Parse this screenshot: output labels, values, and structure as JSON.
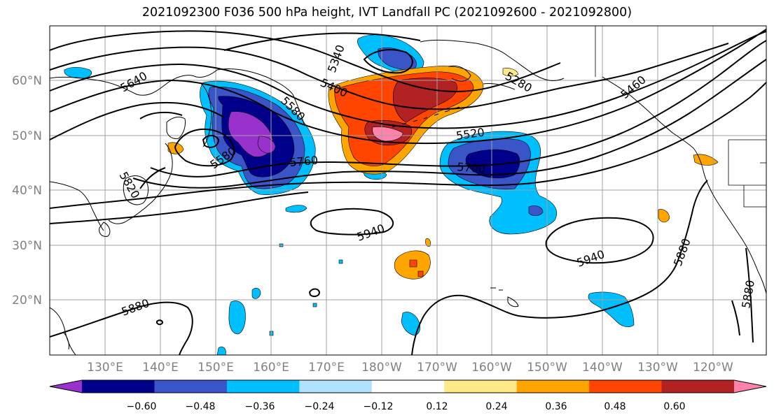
{
  "title": "2021092300 F036 500 hPa height, IVT Landfall PC (2021092600 - 2021092800)",
  "lat_labels": [
    "60°N",
    "50°N",
    "40°N",
    "30°N",
    "20°N"
  ],
  "lon_labels": [
    "130°E",
    "140°E",
    "150°E",
    "160°E",
    "170°E",
    "180°W",
    "170°W",
    "160°W",
    "150°W",
    "140°W",
    "130°W",
    "120°W"
  ],
  "contour_labels": [
    "5640",
    "5340",
    "5400",
    "5580",
    "5280",
    "5460",
    "5520",
    "5580",
    "5760",
    "5700",
    "5820",
    "5940",
    "5940",
    "5880",
    "5880",
    "5880"
  ],
  "colorbar": {
    "ticks": [
      "−0.60",
      "−0.48",
      "−0.36",
      "−0.24",
      "−0.12",
      "0.12",
      "0.24",
      "0.36",
      "0.48",
      "0.60"
    ],
    "colors": [
      "#9932cc",
      "#00008b",
      "#3a55c8",
      "#00bfff",
      "#b0e2ff",
      "#ffffff",
      "#ffe888",
      "#ffa500",
      "#ff4500",
      "#b22222",
      "#ff82ab"
    ]
  }
}
